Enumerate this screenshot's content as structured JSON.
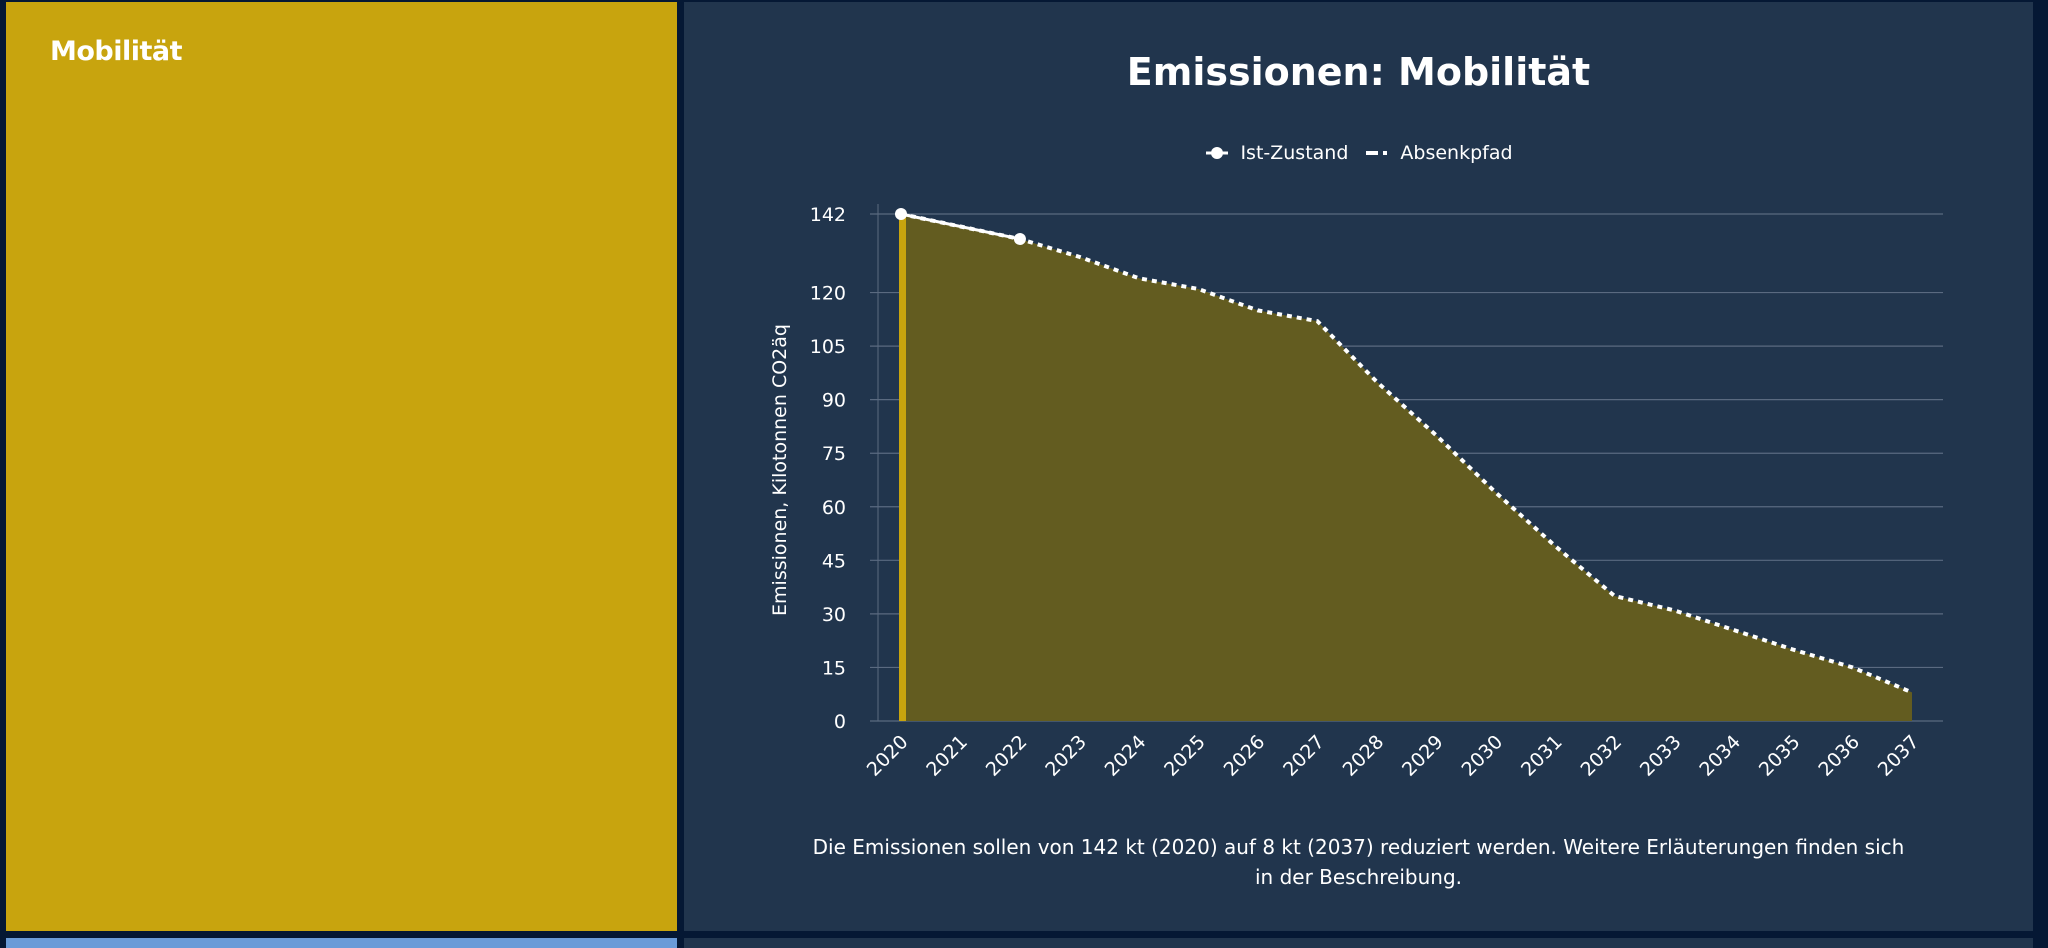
{
  "left_panel": {
    "title": "Mobilität",
    "color": "#c8a40e"
  },
  "chart_data": {
    "type": "area",
    "title": "Emissionen: Mobilität",
    "ylabel": "Emissionen, Kilotonnen CO2äq",
    "xlabel": "",
    "ylim": [
      0,
      142
    ],
    "yticks": [
      0,
      15,
      30,
      45,
      60,
      75,
      90,
      105,
      120,
      142
    ],
    "categories": [
      "2020",
      "2021",
      "2022",
      "2023",
      "2024",
      "2025",
      "2026",
      "2027",
      "2028",
      "2029",
      "2030",
      "2031",
      "2032",
      "2033",
      "2034",
      "2035",
      "2036",
      "2037"
    ],
    "grid": true,
    "legend_position": "top",
    "series": [
      {
        "name": "Ist-Zustand",
        "style": "solid-markers",
        "color": "#ffffff",
        "points": [
          {
            "x": "2020",
            "y": 142
          },
          {
            "x": "2022",
            "y": 135
          }
        ]
      },
      {
        "name": "Absenkpfad",
        "style": "dotted-area",
        "color": "#ffffff",
        "fill": "#635c20",
        "values": [
          142,
          138.5,
          135,
          130,
          124,
          121,
          115,
          112,
          95,
          80,
          64,
          49,
          35,
          31,
          25.5,
          20,
          15,
          8
        ]
      }
    ],
    "highlight_bar": {
      "x": "2020",
      "color": "#c8a40e"
    }
  },
  "description": "Die Emissionen sollen von 142 kt (2020) auf 8 kt (2037) reduziert werden. Weitere Erläuterungen finden sich in der Beschreibung."
}
